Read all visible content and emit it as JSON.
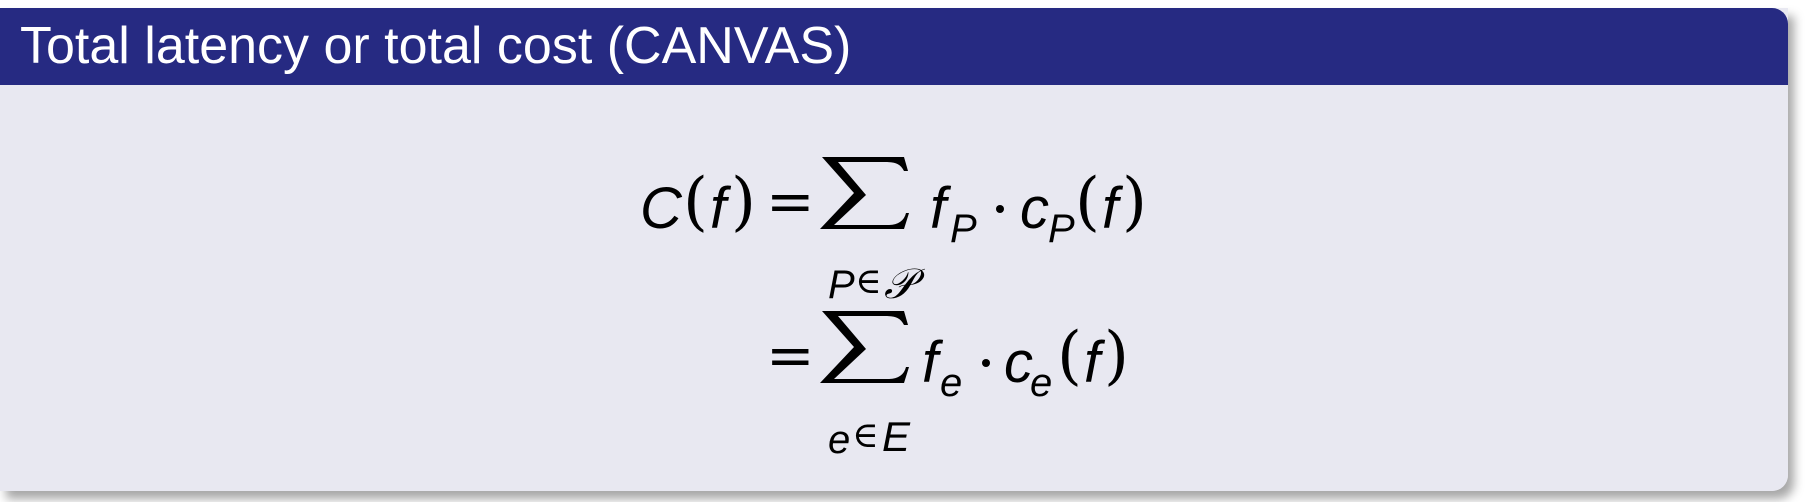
{
  "block": {
    "title": "Total latency or total cost (CANVAS)"
  },
  "equation": {
    "line1": {
      "lhs": "C",
      "lhs_open": "(",
      "lhs_arg": "f",
      "lhs_close": ")",
      "equals": "=",
      "sum_index": "P",
      "sum_in": "∈",
      "sum_set": "𝒫",
      "term_f": "f",
      "term_f_sub": "P",
      "dot": "·",
      "term_c": "c",
      "term_c_sub": "P",
      "term_open": "(",
      "term_arg": "f",
      "term_close": ")"
    },
    "line2": {
      "equals": "=",
      "sum_index": "e",
      "sum_in": "∈",
      "sum_set": "E",
      "term_f": "f",
      "term_f_sub": "e",
      "dot": "·",
      "term_c": "c",
      "term_c_sub": "e",
      "term_open": "(",
      "term_arg": "f",
      "term_close": ")"
    }
  }
}
